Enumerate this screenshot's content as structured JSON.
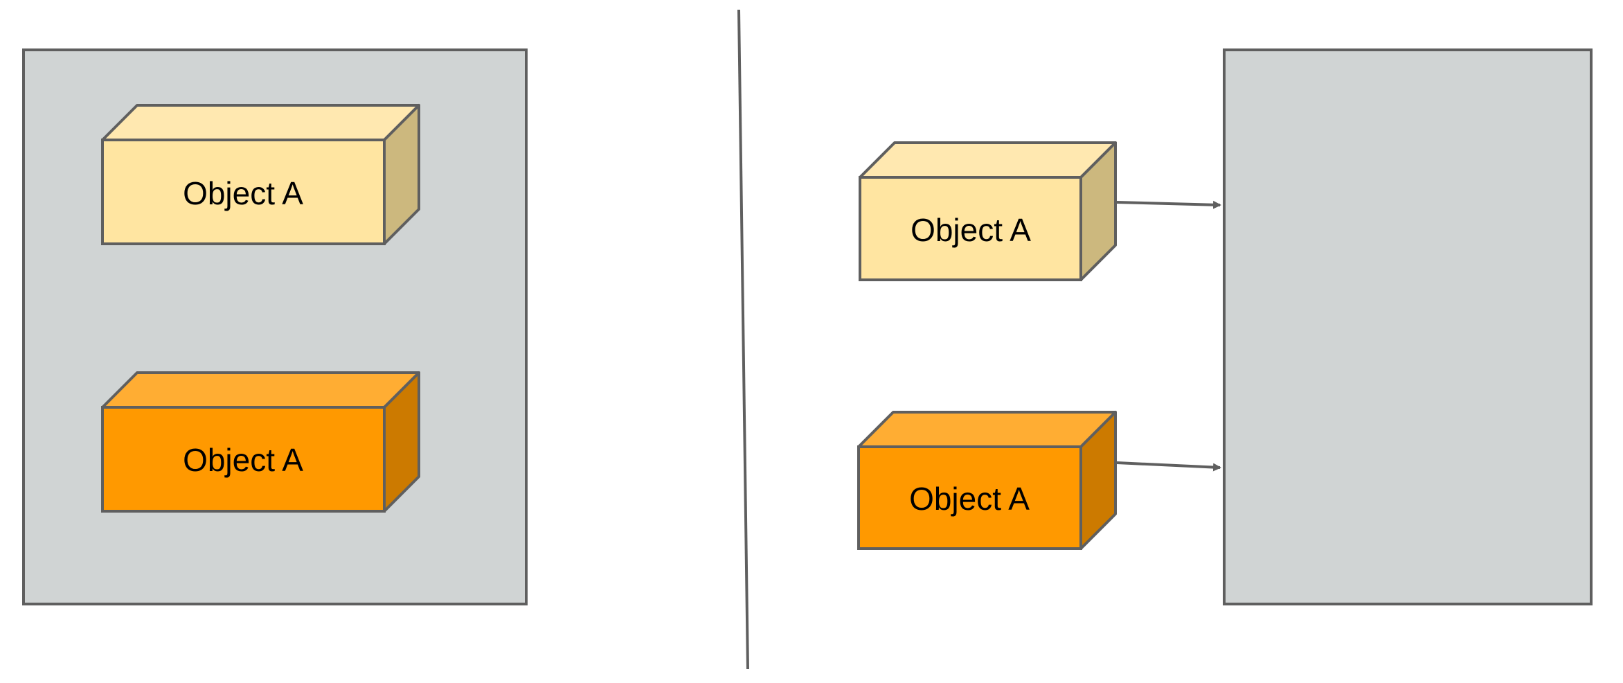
{
  "colors": {
    "background": "#ffffff",
    "container_fill": "#d0d4d4",
    "outline": "#5f5f5f",
    "light_box_front": "#ffe5a1",
    "light_box_top": "#ffe8b0",
    "light_box_side": "#ccb87e",
    "dark_box_front": "#ff9900",
    "dark_box_top": "#ffad33",
    "dark_box_side": "#cc7a00",
    "arrow": "#5f5f5f"
  },
  "left_panel": {
    "boxes": [
      {
        "label": "Object A",
        "style": "light"
      },
      {
        "label": "Object A",
        "style": "dark"
      }
    ]
  },
  "right_panel": {
    "boxes": [
      {
        "label": "Object A",
        "style": "light"
      },
      {
        "label": "Object A",
        "style": "dark"
      }
    ]
  }
}
